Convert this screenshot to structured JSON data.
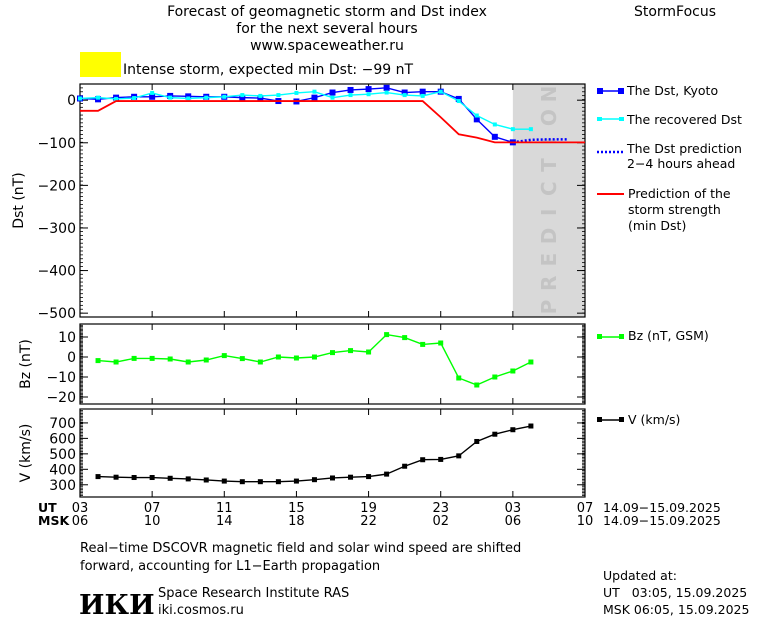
{
  "header": {
    "title_lines": [
      "Forecast of geomagnetic storm and Dst index",
      "for the next several hours",
      "www.spaceweather.ru"
    ],
    "brand": "StormFocus",
    "alert": {
      "label": "Intense storm, expected min Dst: −99 nT",
      "color": "#ffff00"
    }
  },
  "x_axis": {
    "ut_label": "UT",
    "msk_label": "MSK",
    "ut_ticks": [
      "03",
      "07",
      "11",
      "15",
      "19",
      "23",
      "03",
      "07"
    ],
    "msk_ticks": [
      "06",
      "10",
      "14",
      "18",
      "22",
      "02",
      "06",
      "10"
    ],
    "ut_range": "14.09−15.09.2025",
    "msk_range": "14.09−15.09.2025",
    "hours_span": 28,
    "prediction_label": "PREDICTION",
    "prediction_from_hour": 24
  },
  "chart_data": [
    {
      "type": "line",
      "ylabel": "Dst (nT)",
      "ylim": [
        -509,
        38
      ],
      "yticks": [
        0,
        -100,
        -200,
        -300,
        -400,
        -500
      ],
      "x_unit": "hours since 03 UT 14.09.2025",
      "series": [
        {
          "name": "The Dst, Kyoto",
          "color": "#0000ff",
          "marker": "square-large",
          "x": [
            0,
            1,
            2,
            3,
            4,
            5,
            6,
            7,
            8,
            9,
            10,
            11,
            12,
            13,
            14,
            15,
            16,
            17,
            18,
            19,
            20,
            21,
            22,
            23,
            24
          ],
          "y": [
            4,
            2,
            6,
            8,
            8,
            10,
            9,
            8,
            8,
            6,
            5,
            -2,
            -3,
            6,
            18,
            24,
            26,
            29,
            18,
            20,
            20,
            3,
            -45,
            -86,
            -99
          ]
        },
        {
          "name": "The recovered Dst",
          "color": "#00ffff",
          "marker": "square-small",
          "x": [
            0,
            1,
            2,
            3,
            4,
            5,
            6,
            7,
            8,
            9,
            10,
            11,
            12,
            13,
            14,
            15,
            16,
            17,
            18,
            19,
            20,
            21,
            22,
            23,
            24,
            25
          ],
          "y": [
            4,
            6,
            3,
            5,
            17,
            6,
            4,
            6,
            8,
            12,
            10,
            12,
            17,
            20,
            6,
            12,
            14,
            18,
            12,
            10,
            20,
            -2,
            -36,
            -57,
            -68,
            -68
          ]
        },
        {
          "name": "The Dst prediction 2−4 hours ahead",
          "color": "#0000ff",
          "marker": "dotted",
          "x": [
            24,
            25,
            26,
            27
          ],
          "y": [
            -99,
            -93,
            -92,
            -92
          ]
        },
        {
          "name": "Prediction of the storm strength (min Dst)",
          "color": "#ff0000",
          "marker": "none",
          "x": [
            0,
            1,
            2,
            19,
            20,
            21,
            22,
            23,
            28
          ],
          "y": [
            -25,
            -25,
            -2,
            -2,
            -40,
            -80,
            -88,
            -99,
            -99
          ]
        }
      ]
    },
    {
      "type": "line",
      "ylabel": "Bz (nT)",
      "ylim": [
        -23.5,
        16.5
      ],
      "yticks": [
        10,
        0,
        -10,
        -20
      ],
      "series": [
        {
          "name": "Bz (nT, GSM)",
          "color": "#00ff00",
          "marker": "square",
          "x": [
            1,
            2,
            3,
            4,
            5,
            6,
            7,
            8,
            9,
            10,
            11,
            12,
            13,
            14,
            15,
            16,
            17,
            18,
            19,
            20,
            21,
            22,
            23,
            24,
            25
          ],
          "y": [
            -1.8,
            -2.5,
            -0.7,
            -0.7,
            -1,
            -2.5,
            -1.5,
            0.7,
            -0.8,
            -2.5,
            0,
            -0.5,
            0,
            2.2,
            3.2,
            2.5,
            11.2,
            9.7,
            6.3,
            7,
            -10.5,
            -14,
            -10,
            -7,
            -2.5
          ]
        }
      ]
    },
    {
      "type": "line",
      "ylabel": "V (km/s)",
      "ylim": [
        221,
        790
      ],
      "yticks": [
        700,
        600,
        500,
        400,
        300
      ],
      "series": [
        {
          "name": "V (km/s)",
          "color": "#000000",
          "marker": "square",
          "x": [
            1,
            2,
            3,
            4,
            5,
            6,
            7,
            8,
            9,
            10,
            11,
            12,
            13,
            14,
            15,
            16,
            17,
            18,
            19,
            20,
            21,
            22,
            23,
            24,
            25
          ],
          "y": [
            353,
            349,
            347,
            347,
            342,
            338,
            331,
            324,
            320,
            320,
            320,
            324,
            333,
            344,
            349,
            353,
            369,
            420,
            462,
            464,
            487,
            580,
            627,
            656,
            680
          ]
        }
      ]
    }
  ],
  "footer": {
    "note_lines": [
      "Real−time DSCOVR magnetic field and solar wind speed are shifted",
      "forward, accounting for L1−Earth propagation"
    ],
    "logo_text": "ИКИ",
    "institute": "Space Research Institute RAS",
    "website": "iki.cosmos.ru",
    "updated_label": "Updated at:",
    "updated_ut": "UT   03:05, 15.09.2025",
    "updated_msk": "MSK 06:05, 15.09.2025"
  }
}
